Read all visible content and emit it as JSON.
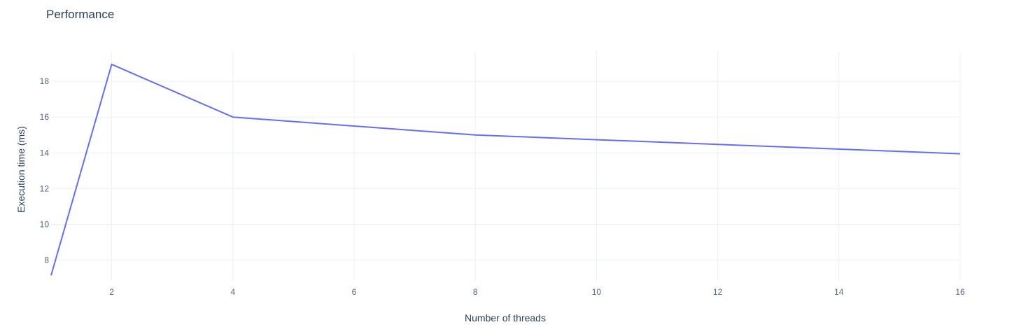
{
  "chart_data": {
    "type": "line",
    "title": "Performance",
    "xlabel": "Number of threads",
    "ylabel": "Execution time (ms)",
    "xlim": [
      1,
      16
    ],
    "ylim": [
      6.85,
      19.65
    ],
    "x_ticks": [
      2,
      4,
      6,
      8,
      10,
      12,
      14,
      16
    ],
    "y_ticks": [
      8,
      10,
      12,
      14,
      16,
      18
    ],
    "grid": true,
    "series": [
      {
        "color": "#636efa",
        "x": [
          1,
          2,
          4,
          8,
          16
        ],
        "y": [
          7.15,
          18.95,
          16.0,
          15.0,
          13.95
        ]
      }
    ]
  }
}
